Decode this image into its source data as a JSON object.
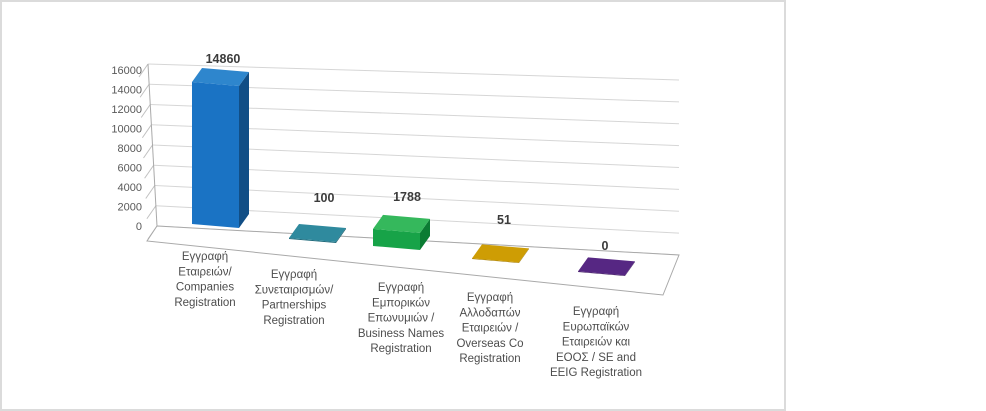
{
  "chart_data": {
    "type": "bar",
    "style": "3d",
    "title": "",
    "xlabel": "",
    "ylabel": "",
    "categories": [
      "Εγγραφή Εταιρειών/ Companies Registration",
      "Εγγραφή Συνεταιρισμών/ Partnerships Registration",
      "Εγγραφή Εμπορικών Επωνυμιών / Business Names Registration",
      "Εγγραφή Αλλοδαπών Εταιρειών / Overseas Co Registration",
      "Εγγραφή Ευρωπαϊκών Εταιρειών και ΕΟΟΣ / SE and EEIG Registration"
    ],
    "categories_multiline": [
      [
        "Εγγραφή",
        "Εταιρειών/",
        "Companies",
        "Registration"
      ],
      [
        "Εγγραφή",
        "Συνεταιρισμών/",
        "Partnerships",
        "Registration"
      ],
      [
        "Εγγραφή",
        "Εμπορικών",
        "Επωνυμιών /",
        "Business Names",
        "Registration"
      ],
      [
        "Εγγραφή",
        "Αλλοδαπών",
        "Εταιρειών /",
        "Overseas Co",
        "Registration"
      ],
      [
        "Εγγραφή",
        "Ευρωπαϊκών",
        "Εταιρειών και",
        "ΕΟΟΣ / SE and",
        "EEIG Registration"
      ]
    ],
    "values": [
      14860,
      100,
      1788,
      51,
      0
    ],
    "data_labels": [
      "14860",
      "100",
      "1788",
      "51",
      "0"
    ],
    "yticks": [
      "16000",
      "14000",
      "12000",
      "10000",
      "8000",
      "6000",
      "4000",
      "2000",
      "0"
    ],
    "ylim": [
      0,
      16000
    ],
    "ytick_step": 2000,
    "grid": true,
    "legend": false,
    "bar_colors": [
      {
        "name": "blue",
        "top": "#2E86CD",
        "front": "#1A73C4",
        "side": "#114E86"
      },
      {
        "name": "teal",
        "top": "#2F8A9E",
        "front": "#1F6A7B",
        "side": "#15505E"
      },
      {
        "name": "green",
        "top": "#35B85C",
        "front": "#17A348",
        "side": "#0B7C33"
      },
      {
        "name": "gold",
        "top": "#CE9D04",
        "front": "#A87E02",
        "side": "#8A6702"
      },
      {
        "name": "purple",
        "top": "#562783",
        "front": "#431F63",
        "side": "#371A52"
      }
    ],
    "frame_border_color": "#DBDBDB",
    "gridline_color": "#D6D6D6",
    "axis_line_color": "#A9A9A9"
  }
}
